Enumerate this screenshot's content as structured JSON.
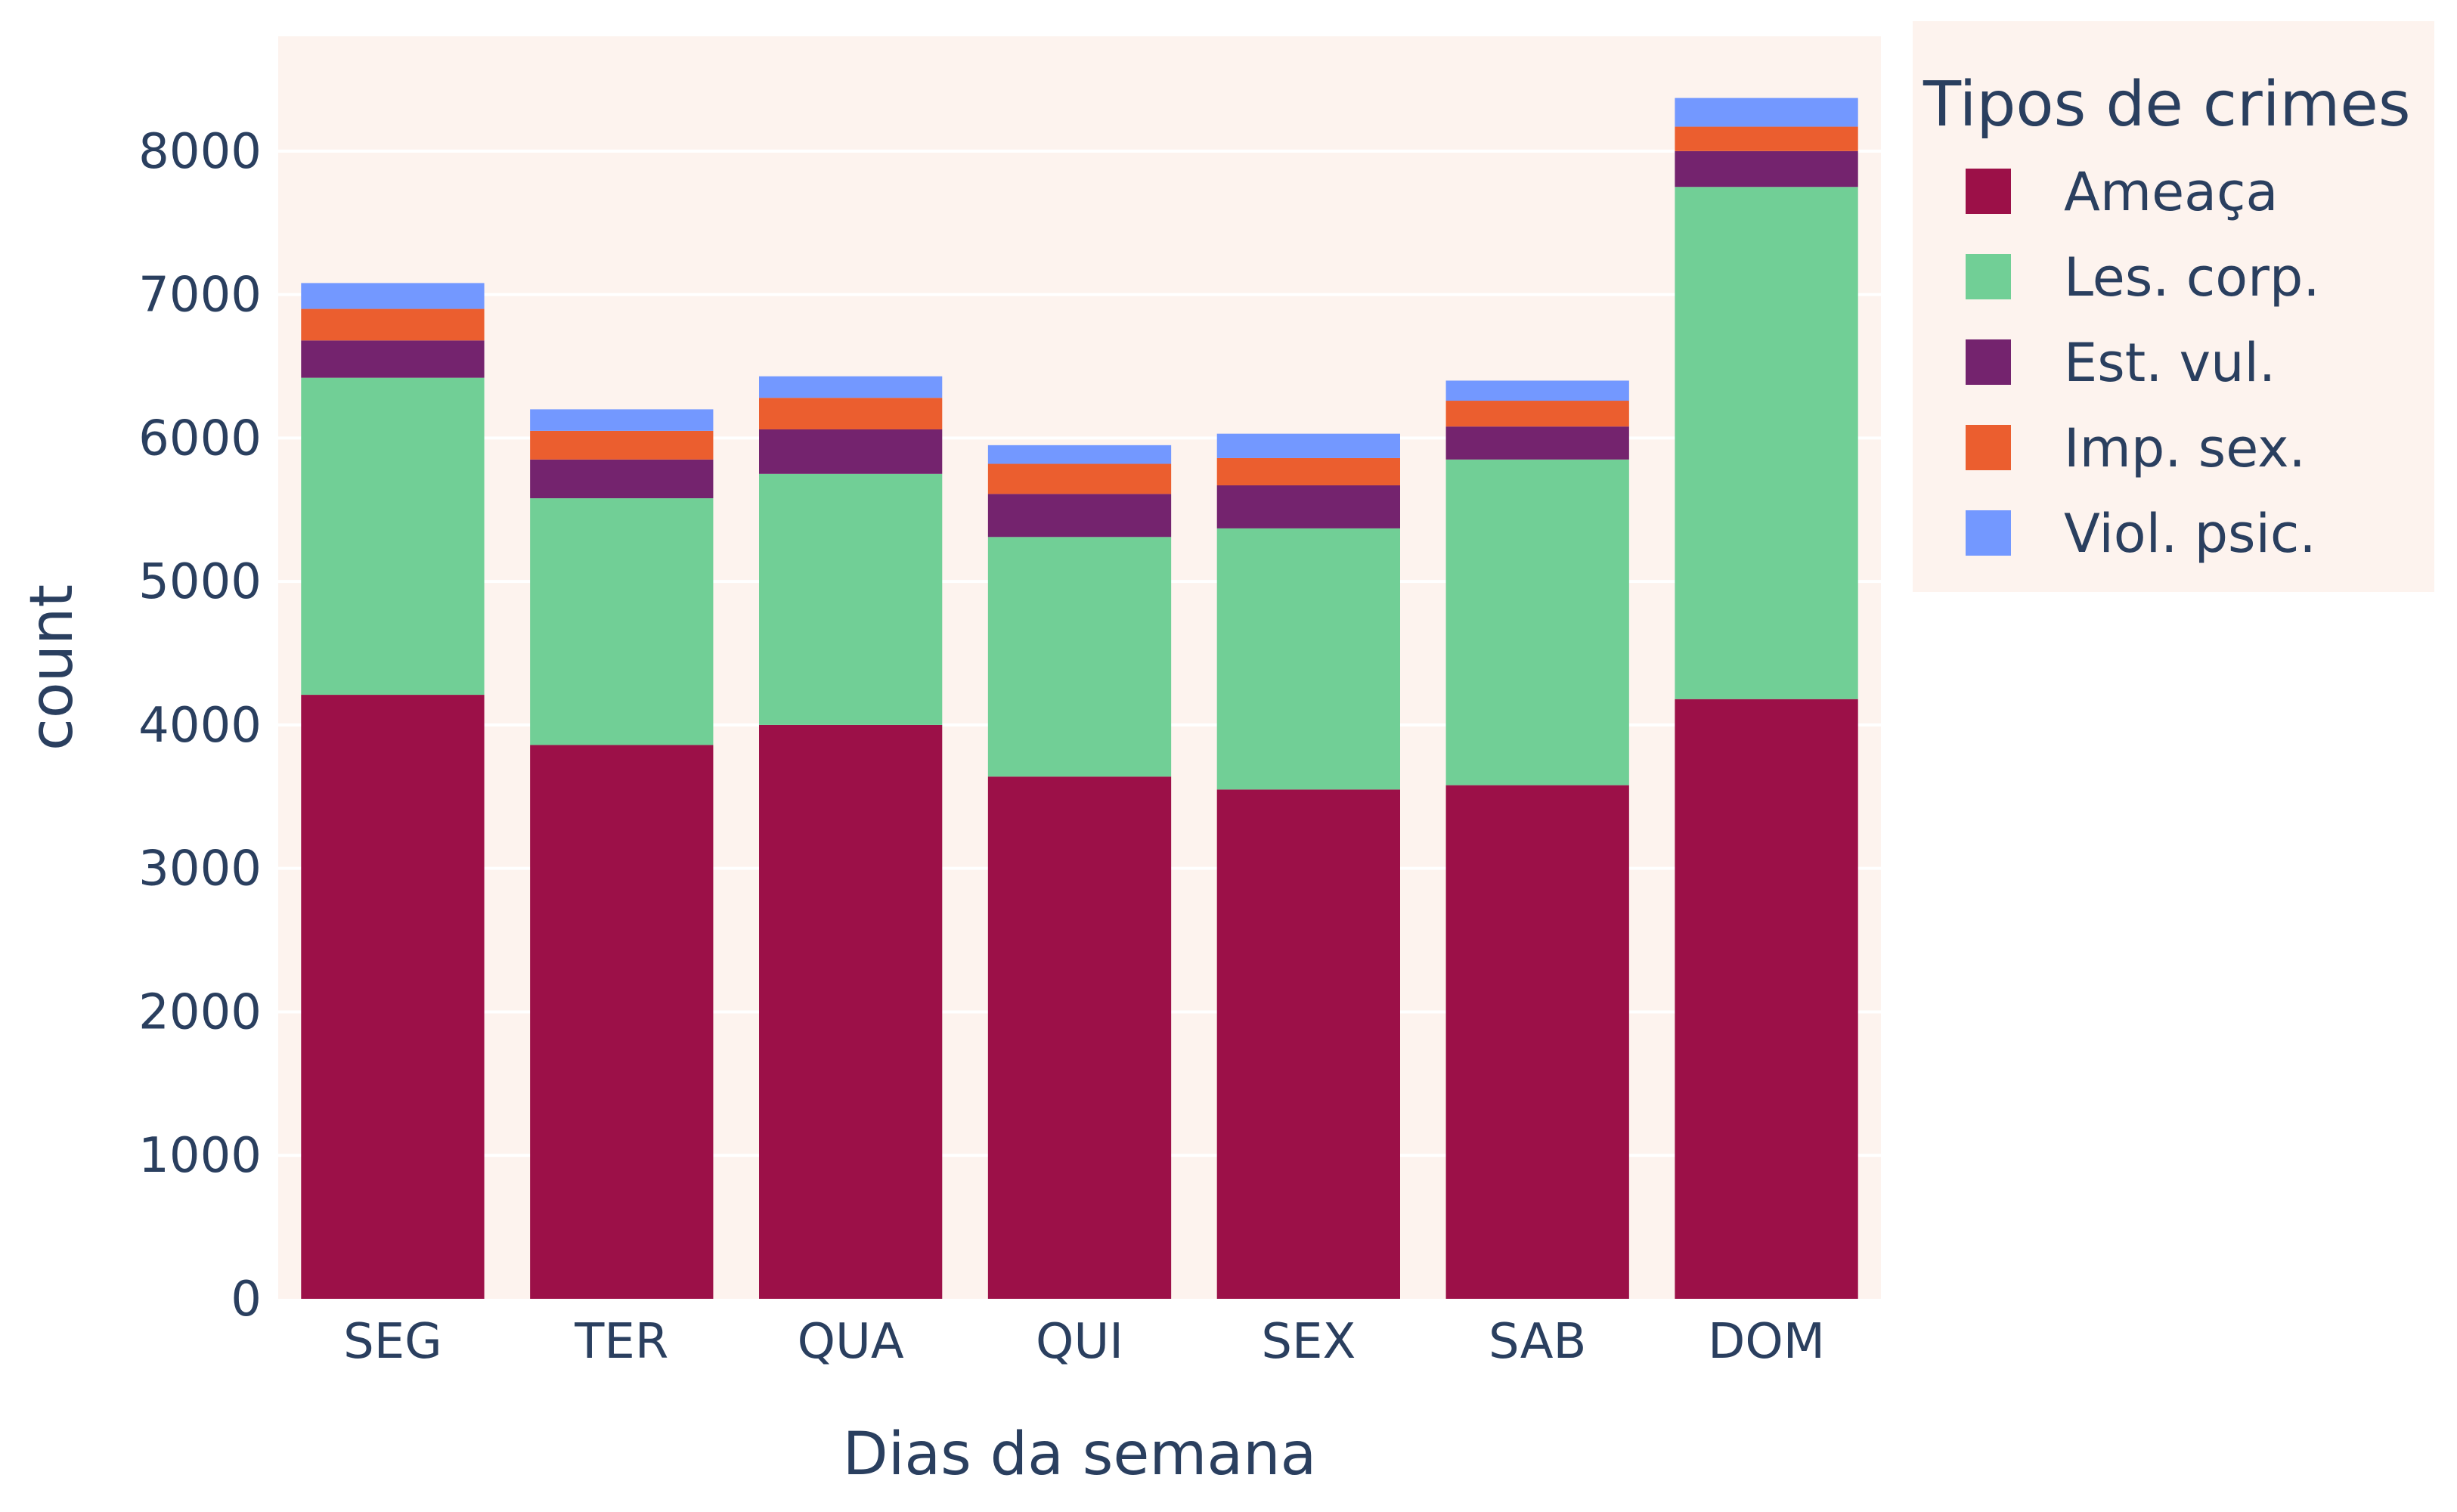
{
  "chart_data": {
    "type": "bar",
    "barmode": "stack",
    "categories": [
      "SEG",
      "TER",
      "QUA",
      "QUI",
      "SEX",
      "SAB",
      "DOM"
    ],
    "series": [
      {
        "name": "Ameaça",
        "color": "#9c1048",
        "values": [
          4210,
          3860,
          4000,
          3640,
          3550,
          3580,
          4180
        ]
      },
      {
        "name": "Les. corp.",
        "color": "#71cf96",
        "values": [
          2210,
          1720,
          1750,
          1670,
          1820,
          2270,
          3570
        ]
      },
      {
        "name": "Est. vul.",
        "color": "#74236e",
        "values": [
          260,
          270,
          310,
          300,
          300,
          230,
          250
        ]
      },
      {
        "name": "Imp. sex.",
        "color": "#eb5e2f",
        "values": [
          220,
          200,
          220,
          210,
          190,
          180,
          170
        ]
      },
      {
        "name": "Viol. psic.",
        "color": "#7398ff",
        "values": [
          180,
          150,
          150,
          130,
          170,
          140,
          200
        ]
      }
    ],
    "xlabel": "Dias da semana",
    "ylabel": "count",
    "ylim": [
      0,
      8800
    ],
    "yticks": [
      0,
      1000,
      2000,
      3000,
      4000,
      5000,
      6000,
      7000,
      8000
    ],
    "legend": {
      "title": "Tipos de crimes",
      "placement": "top-right, outside plot"
    },
    "plot_background": "#fdf3ee",
    "grid": true
  }
}
